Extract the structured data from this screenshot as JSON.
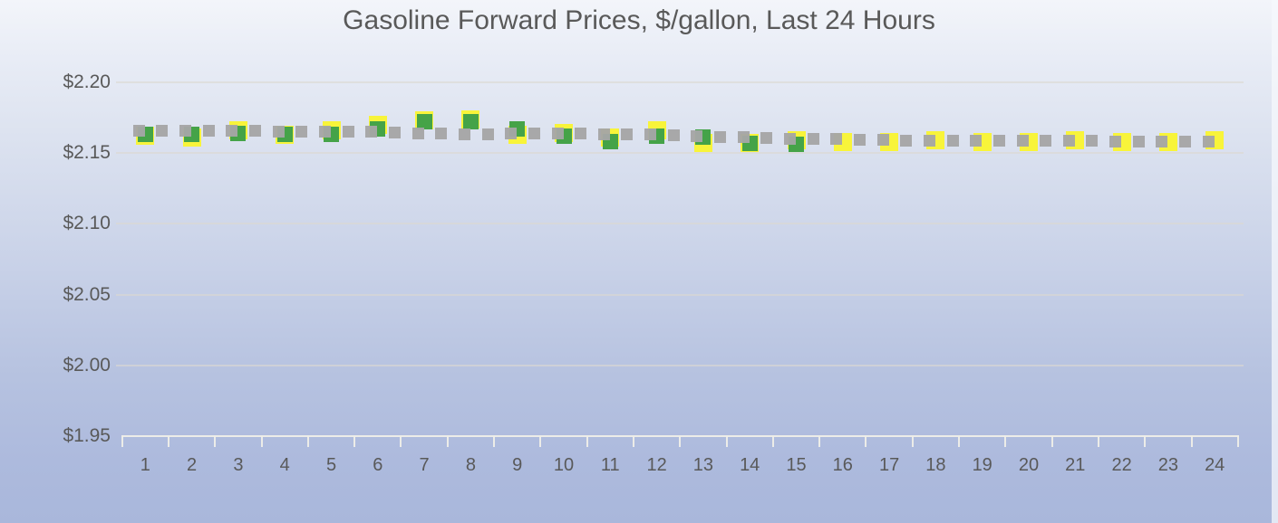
{
  "title": "Gasoline Forward Prices, $/gallon, Last 24 Hours",
  "colors": {
    "background_top": "#f3f5fa",
    "background_bottom": "#a9b7db",
    "title_text": "#595959",
    "axis_text": "#595959",
    "gridline": "#dbd9d0",
    "axis_line": "#efeee8",
    "series_yellow": "#f8f43a",
    "series_green": "#45a348",
    "series_gray": "#a5a5a5"
  },
  "chart_data": {
    "type": "scatter",
    "title": "Gasoline Forward Prices, $/gallon, Last 24 Hours",
    "xlabel": "",
    "ylabel": "",
    "grid": true,
    "legend": "none",
    "x_categories": [
      1,
      2,
      3,
      4,
      5,
      6,
      7,
      8,
      9,
      10,
      11,
      12,
      13,
      14,
      15,
      16,
      17,
      18,
      19,
      20,
      21,
      22,
      23,
      24
    ],
    "y_axis": {
      "tick_labels": [
        "$2.20",
        "$2.15",
        "$2.10",
        "$2.05",
        "$2.00",
        "$1.95"
      ],
      "tick_values": [
        2.2,
        2.15,
        2.1,
        2.05,
        2.0,
        1.95
      ],
      "min": 1.95,
      "max": 2.2
    },
    "series": [
      {
        "name": "gray-dashed-line",
        "type": "line",
        "style": "square-dash",
        "color_key": "series_gray",
        "values": [
          2.166,
          2.166,
          2.166,
          2.165,
          2.165,
          2.165,
          2.164,
          2.163,
          2.164,
          2.164,
          2.163,
          2.163,
          2.162,
          2.161,
          2.16,
          2.16,
          2.159,
          2.159,
          2.159,
          2.159,
          2.159,
          2.158,
          2.158,
          2.158
        ]
      },
      {
        "name": "yellow-square-markers",
        "type": "scatter",
        "marker": "square",
        "color_key": "series_yellow",
        "values": [
          2.162,
          2.161,
          2.166,
          2.163,
          2.166,
          2.17,
          2.173,
          2.174,
          2.163,
          2.164,
          2.161,
          2.166,
          2.157,
          2.157,
          2.159,
          2.158,
          2.158,
          2.159,
          2.158,
          2.158,
          2.159,
          2.158,
          2.158,
          2.159
        ]
      },
      {
        "name": "green-square-markers",
        "type": "scatter",
        "marker": "square",
        "color_key": "series_green",
        "values": [
          2.163,
          2.163,
          2.164,
          2.163,
          2.163,
          2.167,
          2.172,
          2.172,
          2.167,
          2.162,
          2.158,
          2.162,
          2.161,
          2.157,
          2.156,
          null,
          null,
          null,
          null,
          null,
          null,
          null,
          null,
          null
        ]
      }
    ]
  }
}
